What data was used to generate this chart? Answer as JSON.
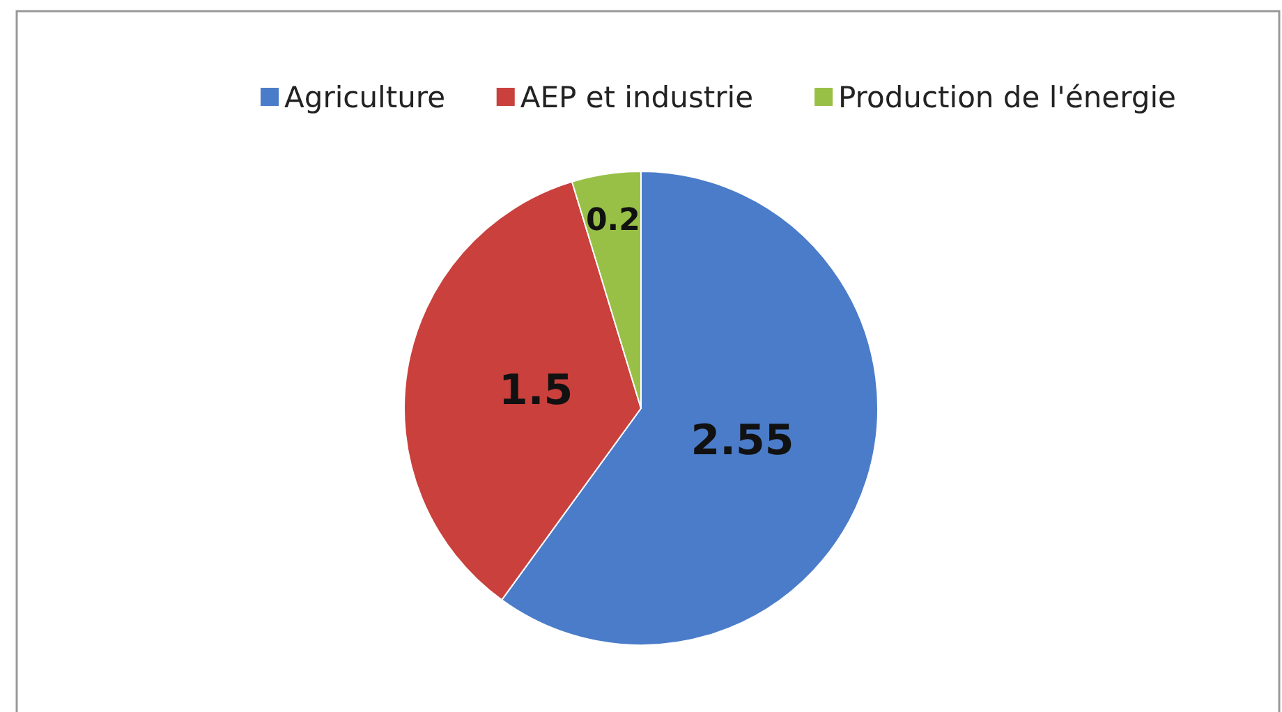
{
  "chart_data": {
    "type": "pie",
    "categories": [
      "Agriculture",
      "AEP et industrie",
      "Production de l'énergie"
    ],
    "values": [
      2.55,
      1.5,
      0.2
    ],
    "colors": [
      "#4a7cc9",
      "#c9403c",
      "#98c046"
    ],
    "data_labels": true,
    "legend": "top"
  }
}
